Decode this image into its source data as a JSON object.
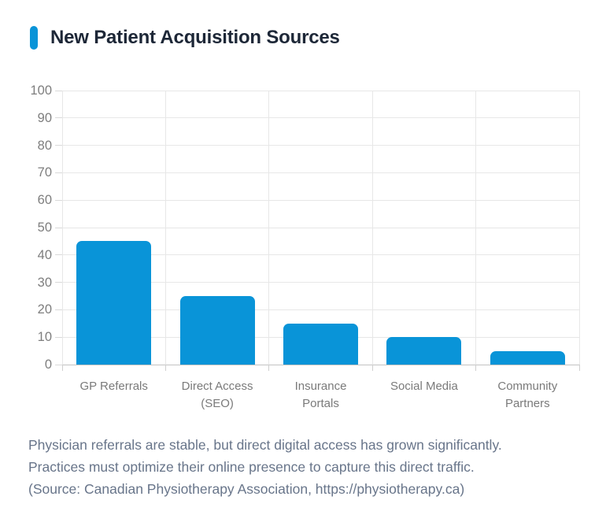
{
  "title": "New Patient Acquisition Sources",
  "accent_color": "#0994d8",
  "chart_data": {
    "type": "bar",
    "title": "New Patient Acquisition Sources",
    "categories": [
      "GP Referrals",
      "Direct Access (SEO)",
      "Insurance Portals",
      "Social Media",
      "Community Partners"
    ],
    "values": [
      45,
      25,
      15,
      10,
      5
    ],
    "ylim": [
      0,
      100
    ],
    "yticks": [
      0,
      10,
      20,
      30,
      40,
      50,
      60,
      70,
      80,
      90,
      100
    ],
    "xlabel": "",
    "ylabel": "",
    "grid": true,
    "legend": false,
    "bar_color": "#0994d8",
    "grid_color": "#e7e7e7",
    "axis_line_color": "#c3c3c3",
    "tick_label_color": "#7a7a7a"
  },
  "caption": {
    "lines": [
      "Physician referrals are stable, but direct digital access has grown significantly.",
      "Practices must optimize their online presence to capture this direct traffic.",
      "(Source: Canadian Physiotherapy Association, https://physiotherapy.ca)"
    ]
  }
}
